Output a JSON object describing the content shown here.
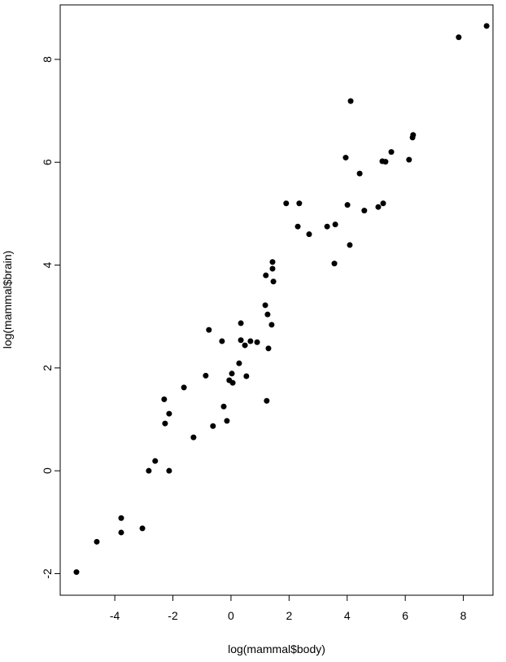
{
  "chart_data": {
    "type": "scatter",
    "x_label": "log(mammal$body)",
    "y_label": "log(mammal$brain)",
    "xlim": [
      -5.88,
      9.02
    ],
    "ylim": [
      -2.42,
      9.06
    ],
    "xticks": [
      -4,
      -2,
      0,
      2,
      4,
      6,
      8
    ],
    "yticks": [
      -2,
      0,
      2,
      4,
      6,
      8
    ],
    "color": "#000000",
    "x": [
      -5.32,
      -4.62,
      -3.78,
      -3.78,
      -3.05,
      -2.83,
      -2.61,
      -2.13,
      -2.3,
      -2.27,
      -2.13,
      -1.62,
      -1.29,
      -0.87,
      -0.76,
      -0.62,
      -0.31,
      -0.25,
      -0.14,
      -0.06,
      0.03,
      0.06,
      0.28,
      0.34,
      0.34,
      0.48,
      0.53,
      0.67,
      0.9,
      1.18,
      1.2,
      1.23,
      1.26,
      1.29,
      1.4,
      1.43,
      1.43,
      1.46,
      1.9,
      2.3,
      2.35,
      2.69,
      3.31,
      3.56,
      3.59,
      3.95,
      4.01,
      4.09,
      4.12,
      4.43,
      4.59,
      5.07,
      5.21,
      5.24,
      5.32,
      5.52,
      6.13,
      6.25,
      6.27,
      7.84,
      8.8
    ],
    "y": [
      -1.97,
      -1.38,
      -0.92,
      -1.2,
      -1.12,
      0,
      0.19,
      0,
      1.39,
      0.92,
      1.11,
      1.62,
      0.65,
      1.85,
      2.74,
      0.87,
      2.52,
      1.25,
      0.97,
      1.76,
      1.89,
      1.71,
      2.09,
      2.87,
      2.54,
      2.44,
      1.84,
      2.52,
      2.5,
      3.22,
      3.8,
      1.36,
      3.04,
      2.38,
      2.84,
      4.06,
      3.93,
      3.68,
      5.2,
      4.75,
      5.2,
      4.6,
      4.75,
      4.03,
      4.79,
      6.09,
      5.17,
      4.39,
      7.19,
      5.78,
      5.06,
      5.13,
      6.02,
      5.2,
      6.01,
      6.2,
      6.05,
      6.48,
      6.53,
      8.43,
      8.65
    ]
  }
}
